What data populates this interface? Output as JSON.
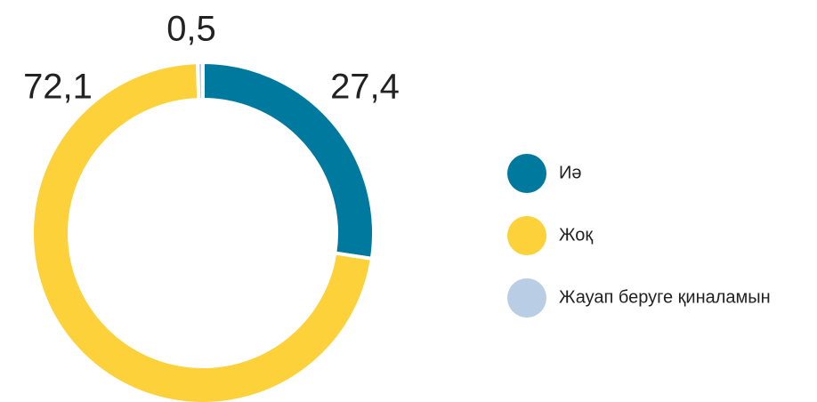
{
  "chart_data": {
    "type": "donut",
    "categories": [
      "Иә",
      "Жоқ",
      "Жауап беруге қиналамын"
    ],
    "values": [
      27.4,
      72.1,
      0.5
    ],
    "value_labels": [
      "27,4",
      "72,1",
      "0,5"
    ],
    "colors": [
      "#00799f",
      "#fdd13a",
      "#b9cde5"
    ],
    "legend": "right"
  }
}
